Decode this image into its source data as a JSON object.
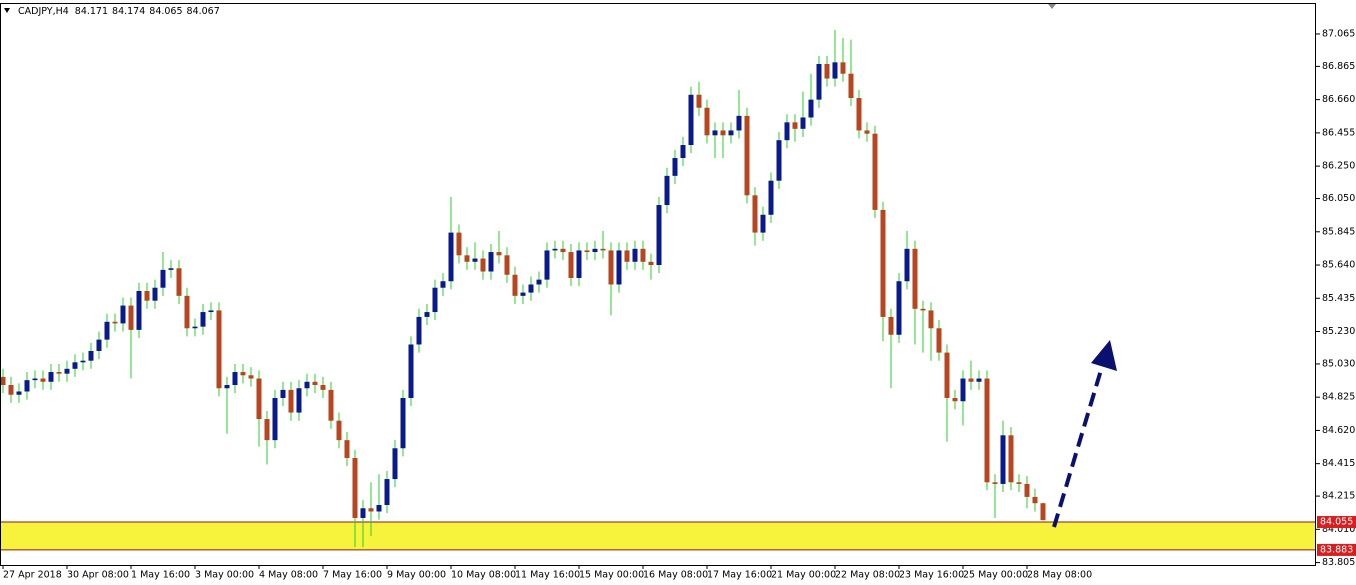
{
  "chart_data": {
    "type": "candlestick",
    "title": "CADJPY,H4",
    "categories": [
      "27 Apr 2018",
      null,
      null,
      null,
      null,
      null,
      null,
      null,
      "30 Apr 08:00",
      null,
      null,
      null,
      null,
      null,
      null,
      null,
      "1 May 16:00",
      null,
      null,
      null,
      null,
      null,
      null,
      null,
      "3 May 00:00",
      null,
      null,
      null,
      null,
      null,
      null,
      null,
      "4 May 08:00",
      null,
      null,
      null,
      null,
      null,
      null,
      null,
      "7 May 16:00",
      null,
      null,
      null,
      null,
      null,
      null,
      null,
      "9 May 00:00",
      null,
      null,
      null,
      null,
      null,
      null,
      null,
      "10 May 08:00",
      null,
      null,
      null,
      null,
      null,
      null,
      null,
      "11 May 16:00",
      null,
      null,
      null,
      null,
      null,
      null,
      null,
      "15 May 00:00",
      null,
      null,
      null,
      null,
      null,
      null,
      null,
      "16 May 08:00",
      null,
      null,
      null,
      null,
      null,
      null,
      null,
      "17 May 16:00",
      null,
      null,
      null,
      null,
      null,
      null,
      null,
      "21 May 00:00",
      null,
      null,
      null,
      null,
      null,
      null,
      null,
      "22 May 08:00",
      null,
      null,
      null,
      null,
      null,
      null,
      null,
      "23 May 16:00",
      null,
      null,
      null,
      null,
      null,
      null,
      null,
      "25 May 00:00",
      null,
      null,
      null,
      null,
      null,
      null,
      null,
      "28 May 08:00",
      null,
      null
    ],
    "open": [
      84.95,
      84.9,
      84.84,
      84.86,
      84.93,
      84.94,
      84.92,
      84.98,
      84.97,
      85.0,
      85.04,
      85.05,
      85.11,
      85.18,
      85.29,
      85.28,
      85.39,
      85.24,
      85.48,
      85.42,
      85.5,
      85.61,
      85.62,
      85.45,
      85.25,
      85.26,
      85.35,
      85.36,
      84.88,
      84.9,
      84.98,
      84.96,
      84.94,
      84.69,
      84.56,
      84.82,
      84.87,
      84.73,
      84.88,
      84.92,
      84.9,
      84.87,
      84.68,
      84.56,
      84.45,
      84.08,
      84.14,
      84.12,
      84.16,
      84.32,
      84.51,
      84.82,
      85.15,
      85.32,
      85.35,
      85.5,
      85.54,
      85.84,
      85.7,
      85.66,
      85.68,
      85.6,
      85.72,
      85.7,
      85.58,
      85.45,
      85.47,
      85.52,
      85.55,
      85.73,
      85.74,
      85.72,
      85.56,
      85.73,
      85.72,
      85.74,
      85.73,
      85.52,
      85.73,
      85.66,
      85.74,
      85.66,
      85.64,
      86.01,
      86.19,
      86.3,
      86.38,
      86.69,
      86.61,
      86.44,
      86.47,
      86.44,
      86.47,
      86.56,
      86.07,
      85.84,
      85.95,
      86.16,
      86.41,
      86.52,
      86.48,
      86.55,
      86.66,
      86.88,
      86.79,
      86.89,
      86.82,
      86.67,
      86.47,
      86.45,
      85.98,
      85.32,
      85.21,
      85.54,
      85.74,
      85.37,
      85.36,
      85.25,
      85.1,
      84.82,
      84.8,
      84.94,
      84.92,
      84.94,
      84.3,
      84.29,
      84.59,
      84.3,
      84.29,
      84.21,
      84.171
    ],
    "high": [
      85.0,
      84.95,
      84.91,
      84.98,
      84.99,
      84.99,
      85.03,
      85.03,
      85.05,
      85.09,
      85.1,
      85.16,
      85.23,
      85.34,
      85.34,
      85.44,
      85.44,
      85.53,
      85.53,
      85.55,
      85.72,
      85.67,
      85.67,
      85.5,
      85.31,
      85.4,
      85.41,
      85.41,
      84.95,
      85.03,
      85.03,
      85.01,
      84.99,
      84.74,
      84.87,
      84.92,
      84.92,
      84.93,
      84.97,
      84.97,
      84.95,
      84.92,
      84.73,
      84.61,
      84.5,
      84.19,
      84.3,
      84.35,
      84.37,
      84.56,
      84.87,
      85.2,
      85.37,
      85.4,
      85.55,
      85.59,
      86.06,
      85.89,
      85.75,
      85.78,
      85.73,
      85.77,
      85.85,
      85.75,
      85.63,
      85.52,
      85.57,
      85.6,
      85.78,
      85.79,
      85.79,
      85.77,
      85.78,
      85.78,
      85.79,
      85.85,
      85.78,
      85.78,
      85.78,
      85.79,
      85.79,
      85.71,
      86.06,
      86.24,
      86.35,
      86.43,
      86.74,
      86.77,
      86.66,
      86.52,
      86.52,
      86.52,
      86.72,
      86.61,
      86.12,
      86.0,
      86.21,
      86.46,
      86.57,
      86.57,
      86.71,
      86.82,
      86.93,
      86.93,
      87.09,
      87.04,
      87.03,
      86.72,
      86.52,
      86.5,
      86.03,
      85.37,
      85.59,
      85.85,
      85.79,
      85.42,
      85.41,
      85.3,
      85.15,
      84.87,
      84.99,
      85.05,
      84.99,
      84.99,
      84.35,
      84.68,
      84.64,
      84.35,
      84.34,
      84.26,
      84.174
    ],
    "low": [
      84.85,
      84.79,
      84.79,
      84.81,
      84.88,
      84.87,
      84.87,
      84.92,
      84.92,
      84.95,
      84.99,
      85.0,
      85.06,
      85.13,
      85.23,
      85.23,
      84.94,
      85.19,
      85.37,
      85.37,
      85.45,
      85.56,
      85.4,
      85.2,
      85.2,
      85.21,
      85.3,
      84.83,
      84.6,
      84.85,
      84.91,
      84.89,
      84.52,
      84.41,
      84.51,
      84.77,
      84.68,
      84.68,
      84.83,
      84.85,
      84.82,
      84.63,
      84.51,
      84.4,
      83.9,
      83.9,
      83.97,
      84.07,
      84.11,
      84.27,
      84.46,
      84.77,
      85.1,
      85.27,
      85.3,
      85.45,
      85.49,
      85.65,
      85.61,
      85.61,
      85.55,
      85.55,
      85.65,
      85.53,
      85.4,
      85.4,
      85.42,
      85.47,
      85.5,
      85.68,
      85.67,
      85.51,
      85.51,
      85.67,
      85.67,
      85.68,
      85.33,
      85.47,
      85.61,
      85.61,
      85.61,
      85.55,
      85.59,
      85.96,
      86.14,
      86.25,
      86.33,
      86.56,
      86.39,
      86.3,
      86.3,
      86.39,
      86.42,
      86.02,
      85.76,
      85.79,
      85.9,
      86.11,
      86.36,
      86.4,
      86.43,
      86.5,
      86.61,
      86.74,
      86.74,
      86.77,
      86.62,
      86.42,
      86.4,
      85.93,
      85.17,
      84.88,
      85.16,
      85.49,
      85.15,
      85.1,
      85.05,
      85.05,
      84.55,
      84.75,
      84.65,
      84.87,
      84.87,
      84.25,
      84.08,
      84.24,
      84.25,
      84.24,
      84.14,
      84.12,
      84.065
    ],
    "close": [
      84.9,
      84.84,
      84.86,
      84.93,
      84.94,
      84.92,
      84.98,
      84.97,
      85.0,
      85.04,
      85.05,
      85.11,
      85.18,
      85.29,
      85.28,
      85.39,
      85.24,
      85.48,
      85.42,
      85.5,
      85.61,
      85.62,
      85.45,
      85.25,
      85.26,
      85.35,
      85.36,
      84.88,
      84.9,
      84.98,
      84.96,
      84.94,
      84.69,
      84.56,
      84.82,
      84.87,
      84.73,
      84.88,
      84.92,
      84.9,
      84.87,
      84.68,
      84.56,
      84.45,
      84.08,
      84.14,
      84.12,
      84.16,
      84.32,
      84.51,
      84.82,
      85.15,
      85.32,
      85.35,
      85.5,
      85.54,
      85.84,
      85.7,
      85.66,
      85.68,
      85.6,
      85.72,
      85.7,
      85.58,
      85.45,
      85.47,
      85.52,
      85.55,
      85.73,
      85.74,
      85.72,
      85.56,
      85.73,
      85.72,
      85.74,
      85.73,
      85.52,
      85.73,
      85.66,
      85.74,
      85.66,
      85.64,
      86.01,
      86.19,
      86.3,
      86.38,
      86.69,
      86.61,
      86.44,
      86.47,
      86.44,
      86.47,
      86.56,
      86.07,
      85.84,
      85.95,
      86.16,
      86.41,
      86.52,
      86.48,
      86.55,
      86.66,
      86.88,
      86.79,
      86.89,
      86.82,
      86.67,
      86.47,
      86.45,
      85.98,
      85.32,
      85.21,
      85.54,
      85.74,
      85.37,
      85.36,
      85.25,
      85.1,
      84.82,
      84.8,
      84.94,
      84.92,
      84.94,
      84.3,
      84.29,
      84.59,
      84.3,
      84.29,
      84.21,
      84.171,
      84.067
    ],
    "up_color": "#0a1a8a",
    "down_color": "#b5461e",
    "wick_color": "#2ecc2e",
    "ylim": [
      83.79,
      87.256
    ],
    "yticks": [
      87.065,
      86.865,
      {
        "value": 86.66,
        "label": "86.660"
      },
      86.455,
      {
        "value": 86.25,
        "label": "86.250"
      },
      {
        "value": 86.05,
        "label": "86.050"
      },
      85.845,
      {
        "value": 85.64,
        "label": "85.640"
      },
      85.435,
      {
        "value": 85.23,
        "label": "85.230"
      },
      {
        "value": 85.03,
        "label": "85.030"
      },
      84.825,
      {
        "value": 84.62,
        "label": "84.620"
      },
      84.415,
      84.215,
      {
        "value": 84.01,
        "label": "84.010"
      },
      83.805
    ],
    "zone": {
      "top": 84.055,
      "bottom": 83.883,
      "color": "#f7f23c",
      "line_color": "#8b1a1a",
      "label_color": "#d81e1e"
    }
  }
}
